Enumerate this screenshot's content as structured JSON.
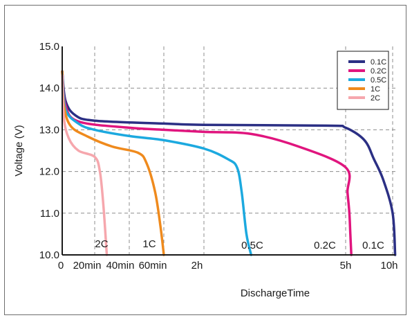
{
  "chart_data": {
    "type": "line",
    "title": "",
    "xlabel": "DischargeTime",
    "ylabel": "Voltage (V)",
    "ylim": [
      10.0,
      15.0
    ],
    "y_ticks": [
      "10.0",
      "11.0",
      "12.0",
      "13.0",
      "14.0",
      "15.0"
    ],
    "x_ticks": [
      "0",
      "20min",
      "40min",
      "60min",
      "2h",
      "5h",
      "10h"
    ],
    "grid": true,
    "legend_position": "top-right",
    "series": [
      {
        "name": "0.1C",
        "color": "#2b2f84",
        "end_label": "0.1C",
        "points": [
          [
            "0",
            14.4
          ],
          [
            "2min",
            13.7
          ],
          [
            "8min",
            13.35
          ],
          [
            "20min",
            13.22
          ],
          [
            "60min",
            13.15
          ],
          [
            "2h",
            13.12
          ],
          [
            "4.6h",
            13.1
          ],
          [
            "5h",
            13.05
          ],
          [
            "7h",
            12.75
          ],
          [
            "8h",
            12.3
          ],
          [
            "9h",
            11.8
          ],
          [
            "10h",
            11.0
          ],
          [
            "10.5h",
            10.0
          ]
        ]
      },
      {
        "name": "0.2C",
        "color": "#e0157e",
        "end_label": "0.2C",
        "points": [
          [
            "0",
            14.4
          ],
          [
            "2min",
            13.6
          ],
          [
            "10min",
            13.2
          ],
          [
            "40min",
            13.05
          ],
          [
            "60min",
            13.0
          ],
          [
            "2h",
            12.95
          ],
          [
            "3h",
            12.9
          ],
          [
            "4h",
            12.6
          ],
          [
            "5h",
            12.1
          ],
          [
            "5.2h",
            11.5
          ],
          [
            "5.4h",
            11.0
          ],
          [
            "5.5h",
            10.5
          ],
          [
            "5.6h",
            10.0
          ]
        ]
      },
      {
        "name": "0.5C",
        "color": "#1ca9df",
        "end_label": "0.5C",
        "points": [
          [
            "0",
            14.4
          ],
          [
            "2min",
            13.5
          ],
          [
            "10min",
            13.15
          ],
          [
            "20min",
            13.0
          ],
          [
            "40min",
            12.85
          ],
          [
            "60min",
            12.75
          ],
          [
            "2h",
            12.55
          ],
          [
            "2.5h",
            12.3
          ],
          [
            "2.7h",
            12.1
          ],
          [
            "2.8h",
            11.5
          ],
          [
            "2.9h",
            10.5
          ],
          [
            "3h",
            10.0
          ]
        ]
      },
      {
        "name": "1C",
        "color": "#ef8a1d",
        "end_label": "1C",
        "points": [
          [
            "0",
            14.4
          ],
          [
            "1min",
            13.6
          ],
          [
            "5min",
            13.1
          ],
          [
            "15min",
            12.85
          ],
          [
            "30min",
            12.6
          ],
          [
            "45min",
            12.45
          ],
          [
            "50min",
            12.2
          ],
          [
            "55min",
            11.5
          ],
          [
            "58min",
            10.7
          ],
          [
            "60min",
            10.0
          ]
        ]
      },
      {
        "name": "2C",
        "color": "#f6a7ad",
        "end_label": "2C",
        "points": [
          [
            "0",
            14.3
          ],
          [
            "1min",
            13.3
          ],
          [
            "4min",
            12.8
          ],
          [
            "10min",
            12.5
          ],
          [
            "20min",
            12.35
          ],
          [
            "23min",
            12.0
          ],
          [
            "25min",
            11.2
          ],
          [
            "27min",
            10.0
          ]
        ]
      }
    ]
  }
}
